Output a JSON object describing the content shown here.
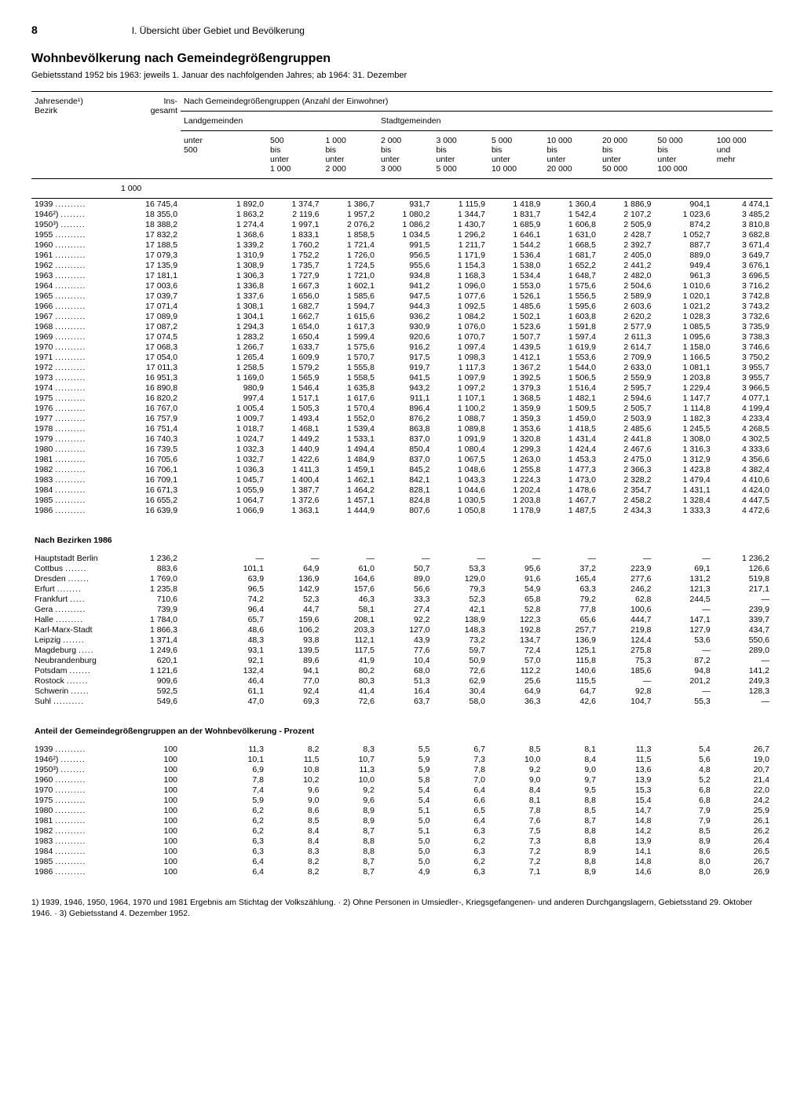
{
  "page": {
    "number": "8",
    "section": "I. Übersicht über Gebiet und Bevölkerung",
    "title": "Wohnbevölkerung nach Gemeindegrößengruppen",
    "subtitle": "Gebietsstand 1952 bis 1963: jeweils 1. Januar des nachfolgenden Jahres; ab 1964: 31. Dezember"
  },
  "headers": {
    "col0a": "Jahresende¹)",
    "col0b": "Bezirk",
    "col1a": "Ins-",
    "col1b": "gesamt",
    "group_main": "Nach Gemeindegrößengruppen (Anzahl der Einwohner)",
    "group_land": "Landgemeinden",
    "group_stadt": "Stadtgemeinden",
    "h2": [
      "unter",
      "500"
    ],
    "h3": [
      "500",
      "bis",
      "unter",
      "1 000"
    ],
    "h4": [
      "1 000",
      "bis",
      "unter",
      "2 000"
    ],
    "h5": [
      "2 000",
      "bis",
      "unter",
      "3 000"
    ],
    "h6": [
      "3 000",
      "bis",
      "unter",
      "5 000"
    ],
    "h7": [
      "5 000",
      "bis",
      "unter",
      "10 000"
    ],
    "h8": [
      "10 000",
      "bis",
      "unter",
      "20 000"
    ],
    "h9": [
      "20 000",
      "bis",
      "unter",
      "50 000"
    ],
    "h10": [
      "50 000",
      "bis",
      "unter",
      "100 000"
    ],
    "h11": [
      "100 000",
      "und",
      "mehr"
    ],
    "unit": "1 000"
  },
  "years": [
    {
      "label": "1939",
      "v": [
        "16 745,4",
        "1 892,0",
        "1 374,7",
        "1 386,7",
        "931,7",
        "1 115,9",
        "1 418,9",
        "1 360,4",
        "1 886,9",
        "904,1",
        "4 474,1"
      ]
    },
    {
      "label": "1946²)",
      "v": [
        "18 355,0",
        "1 863,2",
        "2 119,6",
        "1 957,2",
        "1 080,2",
        "1 344,7",
        "1 831,7",
        "1 542,4",
        "2 107,2",
        "1 023,6",
        "3 485,2"
      ]
    },
    {
      "label": "1950³)",
      "v": [
        "18 388,2",
        "1 274,4",
        "1 997,1",
        "2 076,2",
        "1 086,2",
        "1 430,7",
        "1 685,9",
        "1 606,8",
        "2 505,9",
        "874,2",
        "3 810,8"
      ]
    },
    {
      "label": "1955",
      "v": [
        "17 832,2",
        "1 368,6",
        "1 833,1",
        "1 858,5",
        "1 034,5",
        "1 296,2",
        "1 646,1",
        "1 631,0",
        "2 428,7",
        "1 052,7",
        "3 682,8"
      ]
    },
    {
      "label": "1960",
      "v": [
        "17 188,5",
        "1 339,2",
        "1 760,2",
        "1 721,4",
        "991,5",
        "1 211,7",
        "1 544,2",
        "1 668,5",
        "2 392,7",
        "887,7",
        "3 671,4"
      ]
    },
    {
      "label": "1961",
      "v": [
        "17 079,3",
        "1 310,9",
        "1 752,2",
        "1 726,0",
        "956,5",
        "1 171,9",
        "1 536,4",
        "1 681,7",
        "2 405,0",
        "889,0",
        "3 649,7"
      ]
    },
    {
      "label": "1962",
      "v": [
        "17 135,9",
        "1 308,9",
        "1 735,7",
        "1 724,5",
        "955,6",
        "1 154,3",
        "1 538,0",
        "1 652,2",
        "2 441,2",
        "949,4",
        "3 676,1"
      ]
    },
    {
      "label": "1963",
      "v": [
        "17 181,1",
        "1 306,3",
        "1 727,9",
        "1 721,0",
        "934,8",
        "1 168,3",
        "1 534,4",
        "1 648,7",
        "2 482,0",
        "961,3",
        "3 696,5"
      ]
    },
    {
      "label": "1964",
      "v": [
        "17 003,6",
        "1 336,8",
        "1 667,3",
        "1 602,1",
        "941,2",
        "1 096,0",
        "1 553,0",
        "1 575,6",
        "2 504,6",
        "1 010,6",
        "3 716,2"
      ]
    },
    {
      "label": "1965",
      "v": [
        "17 039,7",
        "1 337,6",
        "1 656,0",
        "1 585,6",
        "947,5",
        "1 077,6",
        "1 526,1",
        "1 556,5",
        "2 589,9",
        "1 020,1",
        "3 742,8"
      ]
    },
    {
      "label": "1966",
      "v": [
        "17 071,4",
        "1 308,1",
        "1 682,7",
        "1 594,7",
        "944,3",
        "1 092,5",
        "1 485,6",
        "1 595,6",
        "2 603,6",
        "1 021,2",
        "3 743,2"
      ]
    },
    {
      "label": "1967",
      "v": [
        "17 089,9",
        "1 304,1",
        "1 662,7",
        "1 615,6",
        "936,2",
        "1 084,2",
        "1 502,1",
        "1 603,8",
        "2 620,2",
        "1 028,3",
        "3 732,6"
      ]
    },
    {
      "label": "1968",
      "v": [
        "17 087,2",
        "1 294,3",
        "1 654,0",
        "1 617,3",
        "930,9",
        "1 076,0",
        "1 523,6",
        "1 591,8",
        "2 577,9",
        "1 085,5",
        "3 735,9"
      ]
    },
    {
      "label": "1969",
      "v": [
        "17 074,5",
        "1 283,2",
        "1 650,4",
        "1 599,4",
        "920,6",
        "1 070,7",
        "1 507,7",
        "1 597,4",
        "2 611,3",
        "1 095,6",
        "3 738,3"
      ]
    },
    {
      "label": "1970",
      "v": [
        "17 068,3",
        "1 266,7",
        "1 633,7",
        "1 575,6",
        "916,2",
        "1 097,4",
        "1 439,5",
        "1 619,9",
        "2 614,7",
        "1 158,0",
        "3 746,6"
      ]
    },
    {
      "label": "1971",
      "v": [
        "17 054,0",
        "1 265,4",
        "1 609,9",
        "1 570,7",
        "917,5",
        "1 098,3",
        "1 412,1",
        "1 553,6",
        "2 709,9",
        "1 166,5",
        "3 750,2"
      ]
    },
    {
      "label": "1972",
      "v": [
        "17 011,3",
        "1 258,5",
        "1 579,2",
        "1 555,8",
        "919,7",
        "1 117,3",
        "1 367,2",
        "1 544,0",
        "2 633,0",
        "1 081,1",
        "3 955,7"
      ]
    },
    {
      "label": "1973",
      "v": [
        "16 951,3",
        "1 169,0",
        "1 565,9",
        "1 558,5",
        "941,5",
        "1 097,9",
        "1 392,5",
        "1 506,5",
        "2 559,9",
        "1 203,8",
        "3 955,7"
      ]
    },
    {
      "label": "1974",
      "v": [
        "16 890,8",
        "980,9",
        "1 546,4",
        "1 635,8",
        "943,2",
        "1 097,2",
        "1 379,3",
        "1 516,4",
        "2 595,7",
        "1 229,4",
        "3 966,5"
      ]
    },
    {
      "label": "1975",
      "v": [
        "16 820,2",
        "997,4",
        "1 517,1",
        "1 617,6",
        "911,1",
        "1 107,1",
        "1 368,5",
        "1 482,1",
        "2 594,6",
        "1 147,7",
        "4 077,1"
      ]
    },
    {
      "label": "1976",
      "v": [
        "16 767,0",
        "1 005,4",
        "1 505,3",
        "1 570,4",
        "896,4",
        "1 100,2",
        "1 359,9",
        "1 509,5",
        "2 505,7",
        "1 114,8",
        "4 199,4"
      ]
    },
    {
      "label": "1977",
      "v": [
        "16 757,9",
        "1 009,7",
        "1 493,4",
        "1 552,0",
        "876,2",
        "1 088,7",
        "1 359,3",
        "1 459,0",
        "2 503,9",
        "1 182,3",
        "4 233,4"
      ]
    },
    {
      "label": "1978",
      "v": [
        "16 751,4",
        "1 018,7",
        "1 468,1",
        "1 539,4",
        "863,8",
        "1 089,8",
        "1 353,6",
        "1 418,5",
        "2 485,6",
        "1 245,5",
        "4 268,5"
      ]
    },
    {
      "label": "1979",
      "v": [
        "16 740,3",
        "1 024,7",
        "1 449,2",
        "1 533,1",
        "837,0",
        "1 091,9",
        "1 320,8",
        "1 431,4",
        "2 441,8",
        "1 308,0",
        "4 302,5"
      ]
    },
    {
      "label": "1980",
      "v": [
        "16 739,5",
        "1 032,3",
        "1 440,9",
        "1 494,4",
        "850,4",
        "1 080,4",
        "1 299,3",
        "1 424,4",
        "2 467,6",
        "1 316,3",
        "4 333,6"
      ]
    },
    {
      "label": "1981",
      "v": [
        "16 705,6",
        "1 032,7",
        "1 422,6",
        "1 484,9",
        "837,0",
        "1 067,5",
        "1 263,0",
        "1 453,3",
        "2 475,0",
        "1 312,9",
        "4 356,6"
      ]
    },
    {
      "label": "1982",
      "v": [
        "16 706,1",
        "1 036,3",
        "1 411,3",
        "1 459,1",
        "845,2",
        "1 048,6",
        "1 255,8",
        "1 477,3",
        "2 366,3",
        "1 423,8",
        "4 382,4"
      ]
    },
    {
      "label": "1983",
      "v": [
        "16 709,1",
        "1 045,7",
        "1 400,4",
        "1 462,1",
        "842,1",
        "1 043,3",
        "1 224,3",
        "1 473,0",
        "2 328,2",
        "1 479,4",
        "4 410,6"
      ]
    },
    {
      "label": "1984",
      "v": [
        "16 671,3",
        "1 055,9",
        "1 387,7",
        "1 464,2",
        "828,1",
        "1 044,6",
        "1 202,4",
        "1 478,6",
        "2 354,7",
        "1 431,1",
        "4 424,0"
      ]
    },
    {
      "label": "1985",
      "v": [
        "16 655,2",
        "1 064,7",
        "1 372,6",
        "1 457,1",
        "824,8",
        "1 030,5",
        "1 203,8",
        "1 467,7",
        "2 458,2",
        "1 328,4",
        "4 447,5"
      ]
    },
    {
      "label": "1986",
      "v": [
        "16 639,9",
        "1 066,9",
        "1 363,1",
        "1 444,9",
        "807,6",
        "1 050,8",
        "1 178,9",
        "1 487,5",
        "2 434,3",
        "1 333,3",
        "4 472,6"
      ]
    }
  ],
  "bezirke_title": "Nach Bezirken 1986",
  "bezirke": [
    {
      "label": "Hauptstadt Berlin",
      "v": [
        "1 236,2",
        "—",
        "—",
        "—",
        "—",
        "—",
        "—",
        "—",
        "—",
        "—",
        "1 236,2"
      ]
    },
    {
      "label": "Cottbus",
      "v": [
        "883,6",
        "101,1",
        "64,9",
        "61,0",
        "50,7",
        "53,3",
        "95,6",
        "37,2",
        "223,9",
        "69,1",
        "126,6"
      ]
    },
    {
      "label": "Dresden",
      "v": [
        "1 769,0",
        "63,9",
        "136,9",
        "164,6",
        "89,0",
        "129,0",
        "91,6",
        "165,4",
        "277,6",
        "131,2",
        "519,8"
      ]
    },
    {
      "label": "Erfurt",
      "v": [
        "1 235,8",
        "96,5",
        "142,9",
        "157,6",
        "56,6",
        "79,3",
        "54,9",
        "63,3",
        "246,2",
        "121,3",
        "217,1"
      ]
    },
    {
      "label": "Frankfurt",
      "v": [
        "710,6",
        "74,2",
        "52,3",
        "46,3",
        "33,3",
        "52,3",
        "65,8",
        "79,2",
        "62,8",
        "244,5",
        "—"
      ]
    },
    {
      "label": "Gera",
      "v": [
        "739,9",
        "96,4",
        "44,7",
        "58,1",
        "27,4",
        "42,1",
        "52,8",
        "77,8",
        "100,6",
        "—",
        "239,9"
      ]
    },
    {
      "label": "Halle",
      "v": [
        "1 784,0",
        "65,7",
        "159,6",
        "208,1",
        "92,2",
        "138,9",
        "122,3",
        "65,6",
        "444,7",
        "147,1",
        "339,7"
      ]
    },
    {
      "label": "Karl-Marx-Stadt",
      "v": [
        "1 866,3",
        "48,6",
        "106,2",
        "203,3",
        "127,0",
        "148,3",
        "192,8",
        "257,7",
        "219,8",
        "127,9",
        "434,7"
      ]
    },
    {
      "label": "Leipzig",
      "v": [
        "1 371,4",
        "48,3",
        "93,8",
        "112,1",
        "43,9",
        "73,2",
        "134,7",
        "136,9",
        "124,4",
        "53,6",
        "550,6"
      ]
    },
    {
      "label": "Magdeburg",
      "v": [
        "1 249,6",
        "93,1",
        "139,5",
        "117,5",
        "77,6",
        "59,7",
        "72,4",
        "125,1",
        "275,8",
        "—",
        "289,0"
      ]
    },
    {
      "label": "Neubrandenburg",
      "v": [
        "620,1",
        "92,1",
        "89,6",
        "41,9",
        "10,4",
        "50,9",
        "57,0",
        "115,8",
        "75,3",
        "87,2",
        "—"
      ]
    },
    {
      "label": "Potsdam",
      "v": [
        "1 121,6",
        "132,4",
        "94,1",
        "80,2",
        "68,0",
        "72,6",
        "112,2",
        "140,6",
        "185,6",
        "94,8",
        "141,2"
      ]
    },
    {
      "label": "Rostock",
      "v": [
        "909,6",
        "46,4",
        "77,0",
        "80,3",
        "51,3",
        "62,9",
        "25,6",
        "115,5",
        "—",
        "201,2",
        "249,3"
      ]
    },
    {
      "label": "Schwerin",
      "v": [
        "592,5",
        "61,1",
        "92,4",
        "41,4",
        "16,4",
        "30,4",
        "64,9",
        "64,7",
        "92,8",
        "—",
        "128,3"
      ]
    },
    {
      "label": "Suhl",
      "v": [
        "549,6",
        "47,0",
        "69,3",
        "72,6",
        "63,7",
        "58,0",
        "36,3",
        "42,6",
        "104,7",
        "55,3",
        "—"
      ]
    }
  ],
  "percent_title": "Anteil der Gemeindegrößengruppen an der Wohnbevölkerung - Prozent",
  "percent": [
    {
      "label": "1939",
      "v": [
        "100",
        "11,3",
        "8,2",
        "8,3",
        "5,5",
        "6,7",
        "8,5",
        "8,1",
        "11,3",
        "5,4",
        "26,7"
      ]
    },
    {
      "label": "1946²)",
      "v": [
        "100",
        "10,1",
        "11,5",
        "10,7",
        "5,9",
        "7,3",
        "10,0",
        "8,4",
        "11,5",
        "5,6",
        "19,0"
      ]
    },
    {
      "label": "1950³)",
      "v": [
        "100",
        "6,9",
        "10,8",
        "11,3",
        "5,9",
        "7,8",
        "9,2",
        "9,0",
        "13,6",
        "4,8",
        "20,7"
      ]
    },
    {
      "label": "1960",
      "v": [
        "100",
        "7,8",
        "10,2",
        "10,0",
        "5,8",
        "7,0",
        "9,0",
        "9,7",
        "13,9",
        "5,2",
        "21,4"
      ]
    },
    {
      "label": "1970",
      "v": [
        "100",
        "7,4",
        "9,6",
        "9,2",
        "5,4",
        "6,4",
        "8,4",
        "9,5",
        "15,3",
        "6,8",
        "22,0"
      ]
    },
    {
      "label": "1975",
      "v": [
        "100",
        "5,9",
        "9,0",
        "9,6",
        "5,4",
        "6,6",
        "8,1",
        "8,8",
        "15,4",
        "6,8",
        "24,2"
      ]
    },
    {
      "label": "1980",
      "v": [
        "100",
        "6,2",
        "8,6",
        "8,9",
        "5,1",
        "6,5",
        "7,8",
        "8,5",
        "14,7",
        "7,9",
        "25,9"
      ]
    },
    {
      "label": "1981",
      "v": [
        "100",
        "6,2",
        "8,5",
        "8,9",
        "5,0",
        "6,4",
        "7,6",
        "8,7",
        "14,8",
        "7,9",
        "26,1"
      ]
    },
    {
      "label": "1982",
      "v": [
        "100",
        "6,2",
        "8,4",
        "8,7",
        "5,1",
        "6,3",
        "7,5",
        "8,8",
        "14,2",
        "8,5",
        "26,2"
      ]
    },
    {
      "label": "1983",
      "v": [
        "100",
        "6,3",
        "8,4",
        "8,8",
        "5,0",
        "6,2",
        "7,3",
        "8,8",
        "13,9",
        "8,9",
        "26,4"
      ]
    },
    {
      "label": "1984",
      "v": [
        "100",
        "6,3",
        "8,3",
        "8,8",
        "5,0",
        "6,3",
        "7,2",
        "8,9",
        "14,1",
        "8,6",
        "26,5"
      ]
    },
    {
      "label": "1985",
      "v": [
        "100",
        "6,4",
        "8,2",
        "8,7",
        "5,0",
        "6,2",
        "7,2",
        "8,8",
        "14,8",
        "8,0",
        "26,7"
      ]
    },
    {
      "label": "1986",
      "v": [
        "100",
        "6,4",
        "8,2",
        "8,7",
        "4,9",
        "6,3",
        "7,1",
        "8,9",
        "14,6",
        "8,0",
        "26,9"
      ]
    }
  ],
  "footnote": "1) 1939, 1946, 1950, 1964, 1970 und 1981 Ergebnis am Stichtag der Volkszählung. · 2) Ohne Personen in Umsiedler-, Kriegsgefangenen- und anderen Durchgangslagern, Gebietsstand 29. Oktober 1946. · 3) Gebietsstand 4. Dezember 1952."
}
